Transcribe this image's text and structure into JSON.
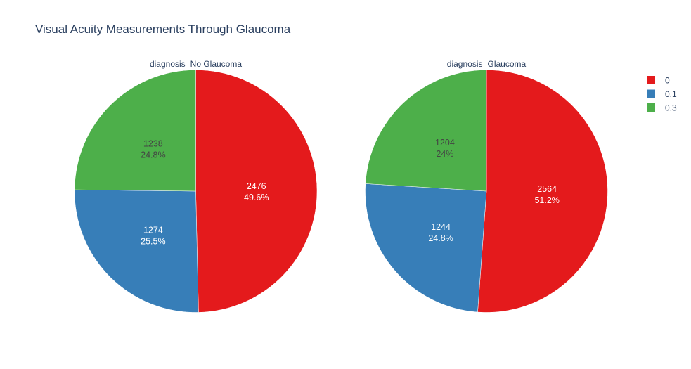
{
  "title": "Visual Acuity Measurements Through Glaucoma",
  "chart_data": {
    "type": "pie",
    "title": "Visual Acuity Measurements Through Glaucoma",
    "legend_position": "top-right",
    "categories": [
      "0",
      "0.1",
      "0.3"
    ],
    "colors": {
      "0": "#e41a1c",
      "0.1": "#377eb8",
      "0.3": "#4daf4a"
    },
    "label_colors": {
      "0": "#ffffff",
      "0.1": "#ffffff",
      "0.3": "#444444"
    },
    "pies": [
      {
        "subtitle": "diagnosis=No Glaucoma",
        "slices": [
          {
            "category": "0",
            "value": 2476,
            "percent": "49.6%"
          },
          {
            "category": "0.1",
            "value": 1274,
            "percent": "25.5%"
          },
          {
            "category": "0.3",
            "value": 1238,
            "percent": "24.8%"
          }
        ]
      },
      {
        "subtitle": "diagnosis=Glaucoma",
        "slices": [
          {
            "category": "0",
            "value": 2564,
            "percent": "51.2%"
          },
          {
            "category": "0.1",
            "value": 1244,
            "percent": "24.8%"
          },
          {
            "category": "0.3",
            "value": 1204,
            "percent": "24%"
          }
        ]
      }
    ]
  }
}
